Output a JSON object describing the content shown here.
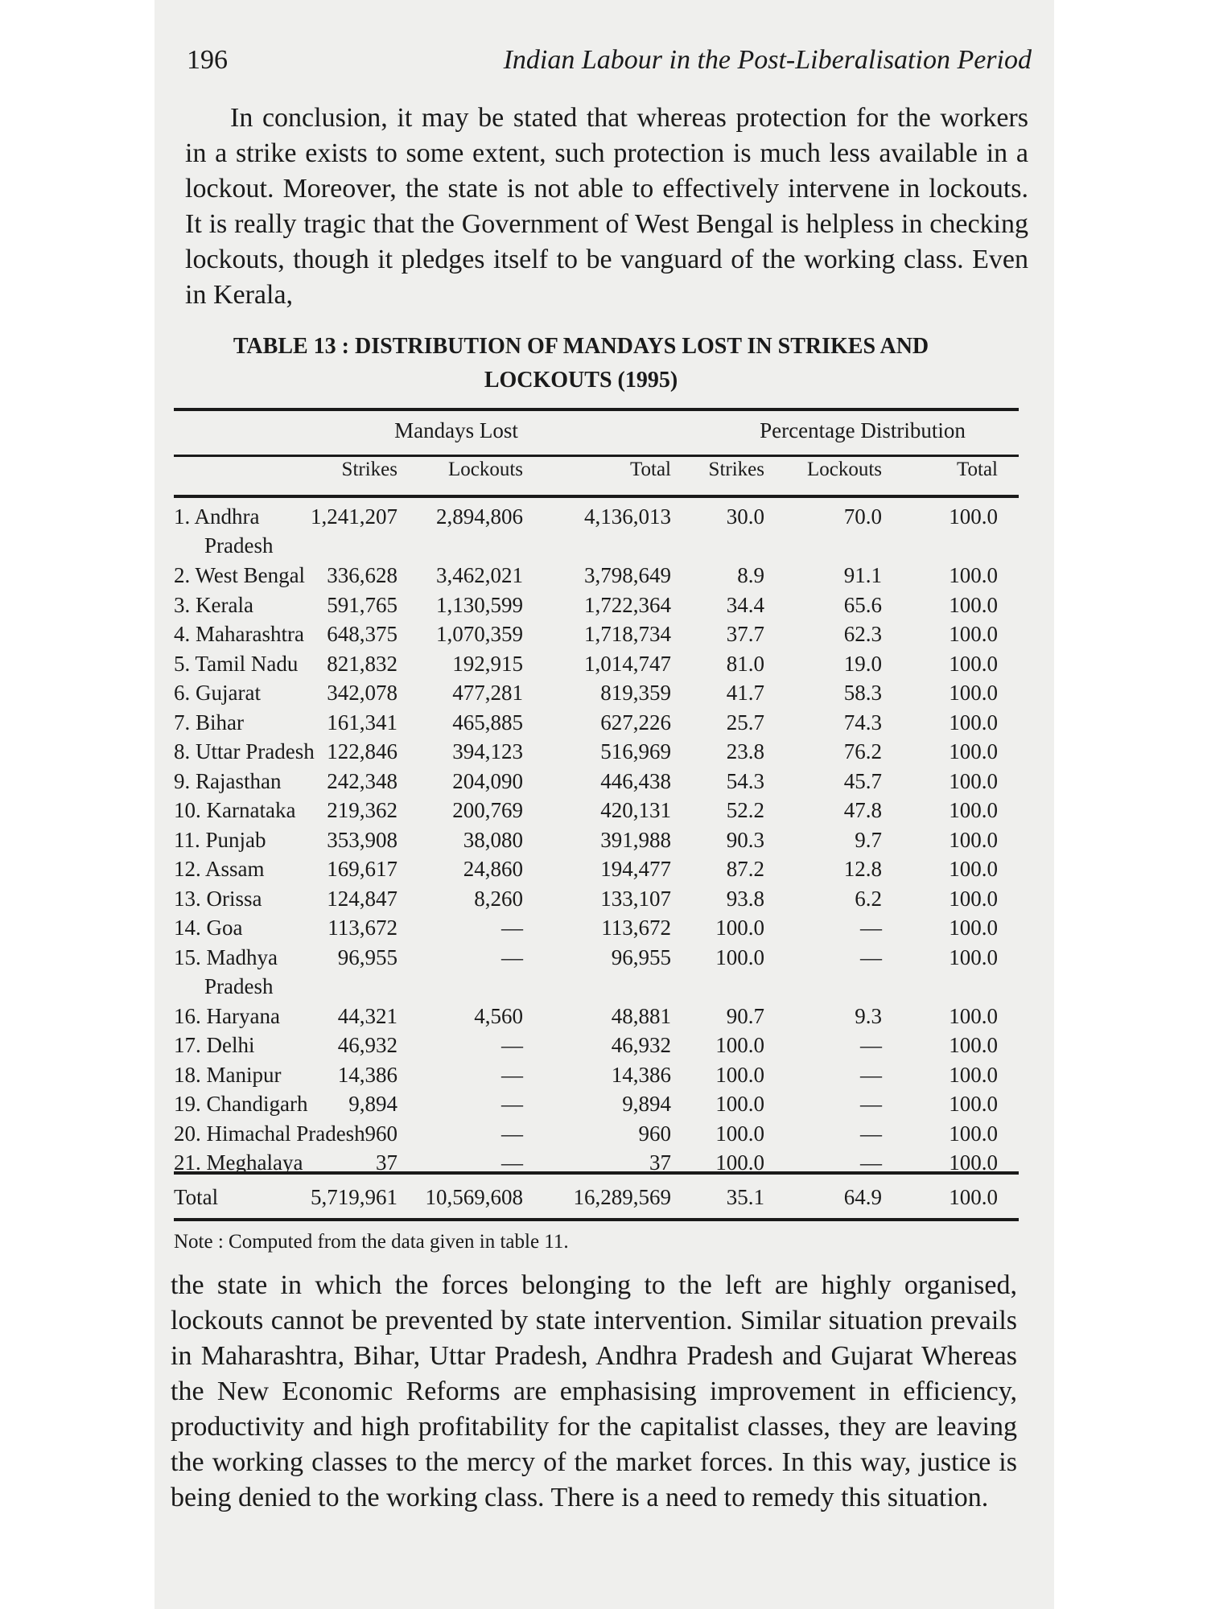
{
  "header": {
    "page_number": "196",
    "running_title": "Indian Labour in the Post-Liberalisation Period"
  },
  "para1": "In conclusion, it may be stated that whereas protection for the workers in a strike exists to some extent, such protection is much less available in a lockout. Moreover, the state is not able to effectively intervene in lockouts. It is really tragic that the Government of West Bengal is helpless in checking lockouts, though it pledges itself to be vanguard of the working class. Even in Kerala,",
  "table": {
    "caption_line1": "TABLE 13 : DISTRIBUTION OF MANDAYS LOST IN STRIKES AND",
    "caption_line2": "LOCKOUTS (1995)",
    "group_headers": {
      "mandays_lost": "Mandays Lost",
      "percentage_distribution": "Percentage Distribution"
    },
    "column_headers": [
      "Strikes",
      "Lockouts",
      "Total",
      "Strikes",
      "Lockouts",
      "Total"
    ],
    "rows": [
      {
        "state": "1. Andhra",
        "state_cont": "Pradesh",
        "strikes": "1,241,207",
        "lockouts": "2,894,806",
        "total": "4,136,013",
        "pct_strikes": "30.0",
        "pct_lockouts": "70.0",
        "pct_total": "100.0"
      },
      {
        "state": "2. West Bengal",
        "strikes": "336,628",
        "lockouts": "3,462,021",
        "total": "3,798,649",
        "pct_strikes": "8.9",
        "pct_lockouts": "91.1",
        "pct_total": "100.0"
      },
      {
        "state": "3. Kerala",
        "strikes": "591,765",
        "lockouts": "1,130,599",
        "total": "1,722,364",
        "pct_strikes": "34.4",
        "pct_lockouts": "65.6",
        "pct_total": "100.0"
      },
      {
        "state": "4. Maharashtra",
        "strikes": "648,375",
        "lockouts": "1,070,359",
        "total": "1,718,734",
        "pct_strikes": "37.7",
        "pct_lockouts": "62.3",
        "pct_total": "100.0"
      },
      {
        "state": "5. Tamil Nadu",
        "strikes": "821,832",
        "lockouts": "192,915",
        "total": "1,014,747",
        "pct_strikes": "81.0",
        "pct_lockouts": "19.0",
        "pct_total": "100.0"
      },
      {
        "state": "6. Gujarat",
        "strikes": "342,078",
        "lockouts": "477,281",
        "total": "819,359",
        "pct_strikes": "41.7",
        "pct_lockouts": "58.3",
        "pct_total": "100.0"
      },
      {
        "state": "7. Bihar",
        "strikes": "161,341",
        "lockouts": "465,885",
        "total": "627,226",
        "pct_strikes": "25.7",
        "pct_lockouts": "74.3",
        "pct_total": "100.0"
      },
      {
        "state": "8. Uttar Pradesh",
        "strikes": "122,846",
        "lockouts": "394,123",
        "total": "516,969",
        "pct_strikes": "23.8",
        "pct_lockouts": "76.2",
        "pct_total": "100.0"
      },
      {
        "state": "9. Rajasthan",
        "strikes": "242,348",
        "lockouts": "204,090",
        "total": "446,438",
        "pct_strikes": "54.3",
        "pct_lockouts": "45.7",
        "pct_total": "100.0"
      },
      {
        "state": "10. Karnataka",
        "strikes": "219,362",
        "lockouts": "200,769",
        "total": "420,131",
        "pct_strikes": "52.2",
        "pct_lockouts": "47.8",
        "pct_total": "100.0"
      },
      {
        "state": "11. Punjab",
        "strikes": "353,908",
        "lockouts": "38,080",
        "total": "391,988",
        "pct_strikes": "90.3",
        "pct_lockouts": "9.7",
        "pct_total": "100.0"
      },
      {
        "state": "12. Assam",
        "strikes": "169,617",
        "lockouts": "24,860",
        "total": "194,477",
        "pct_strikes": "87.2",
        "pct_lockouts": "12.8",
        "pct_total": "100.0"
      },
      {
        "state": "13. Orissa",
        "strikes": "124,847",
        "lockouts": "8,260",
        "total": "133,107",
        "pct_strikes": "93.8",
        "pct_lockouts": "6.2",
        "pct_total": "100.0"
      },
      {
        "state": "14. Goa",
        "strikes": "113,672",
        "lockouts": "—",
        "total": "113,672",
        "pct_strikes": "100.0",
        "pct_lockouts": "—",
        "pct_total": "100.0"
      },
      {
        "state": "15. Madhya",
        "state_cont": "Pradesh",
        "strikes": "96,955",
        "lockouts": "—",
        "total": "96,955",
        "pct_strikes": "100.0",
        "pct_lockouts": "—",
        "pct_total": "100.0"
      },
      {
        "state": "16. Haryana",
        "strikes": "44,321",
        "lockouts": "4,560",
        "total": "48,881",
        "pct_strikes": "90.7",
        "pct_lockouts": "9.3",
        "pct_total": "100.0"
      },
      {
        "state": "17. Delhi",
        "strikes": "46,932",
        "lockouts": "—",
        "total": "46,932",
        "pct_strikes": "100.0",
        "pct_lockouts": "—",
        "pct_total": "100.0"
      },
      {
        "state": "18. Manipur",
        "strikes": "14,386",
        "lockouts": "—",
        "total": "14,386",
        "pct_strikes": "100.0",
        "pct_lockouts": "—",
        "pct_total": "100.0"
      },
      {
        "state": "19. Chandigarh",
        "strikes": "9,894",
        "lockouts": "—",
        "total": "9,894",
        "pct_strikes": "100.0",
        "pct_lockouts": "—",
        "pct_total": "100.0"
      },
      {
        "state": "20. Himachal Pradesh",
        "strikes": "960",
        "lockouts": "—",
        "total": "960",
        "pct_strikes": "100.0",
        "pct_lockouts": "—",
        "pct_total": "100.0"
      },
      {
        "state": "21. Meghalaya",
        "strikes": "37",
        "lockouts": "—",
        "total": "37",
        "pct_strikes": "100.0",
        "pct_lockouts": "—",
        "pct_total": "100.0"
      }
    ],
    "total_row": {
      "label": "Total",
      "strikes": "5,719,961",
      "lockouts": "10,569,608",
      "total": "16,289,569",
      "pct_strikes": "35.1",
      "pct_lockouts": "64.9",
      "pct_total": "100.0"
    },
    "note": "Note : Computed from the data given in table 11."
  },
  "para2": "the state in which the forces belonging to the left are highly organised, lockouts cannot be prevented by state intervention. Similar situation prevails in Maharashtra, Bihar, Uttar Pradesh, Andhra Pradesh and Gujarat Whereas the New Economic Reforms are emphasising improvement in efficiency, productivity and high profitability for the capitalist classes, they are leaving the working classes to the mercy of the market forces. In this way, justice is being denied to the working class. There is a need to remedy this situation."
}
